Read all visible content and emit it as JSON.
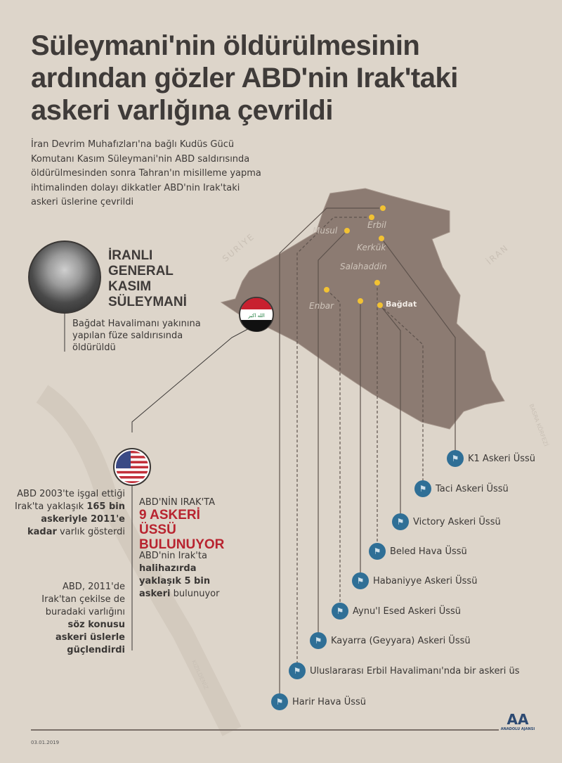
{
  "title_lines": [
    "Süleymani'nin öldürülmesinin",
    "ardından gözler ABD'nin Irak'taki",
    "askeri varlığına çevrildi"
  ],
  "lead": "İran Devrim Muhafızları'na bağlı Kudüs Gücü Komutanı Kasım Süleymani'nin ABD saldırısında öldürülmesinden sonra Tahran'ın misilleme yapma ihtimalinden dolayı dikkatler ABD'nin Irak'taki askeri üslerine çevrildi",
  "person": {
    "name_lines": [
      "İRANLI",
      "GENERAL",
      "KASIM",
      "SÜLEYMANİ"
    ],
    "desc": "Bağdat Havalimanı yakınına yapılan füze saldırısında öldürüldü"
  },
  "map_labels": {
    "syria": "SURİYE",
    "iran": "İRAN",
    "gulf": "BASRA KÖRFEZİ",
    "red_sea": "KIZILDENİZ",
    "mosul": "Musul",
    "erbil": "Erbil",
    "kirkuk": "Kerkük",
    "salahaddin": "Salahaddin",
    "anbar": "Enbar",
    "baghdad": "Bağdat"
  },
  "iraq_flag_text": "الله اكبر",
  "left_text": {
    "p1": {
      "a": "ABD 2003'te işgal ettiği Irak'ta yaklaşık ",
      "b": "165 bin askeriyle 2011'e kadar",
      "c": " varlık gösterdi"
    },
    "p2": {
      "a": "ABD, 2011'de Irak'tan çekilse de buradaki varlığını ",
      "b": "söz konusu askeri üslerle güçlendirdi"
    }
  },
  "right_text": {
    "kicker": "ABD'NİN IRAK'TA",
    "headline": "9 ASKERİ ÜSSÜ BULUNUYOR",
    "p_a": "ABD'nin Irak'ta ",
    "p_b": "halihazırda yaklaşık 5 bin askeri",
    "p_c": " bulunuyor"
  },
  "bases": [
    {
      "name": "K1 Askeri Üssü",
      "line": "solid"
    },
    {
      "name": "Taci Askeri Üssü",
      "line": "dashed"
    },
    {
      "name": "Victory Askeri Üssü",
      "line": "solid"
    },
    {
      "name": "Beled Hava Üssü",
      "line": "dashed"
    },
    {
      "name": "Habaniyye Askeri Üssü",
      "line": "solid"
    },
    {
      "name": "Aynu'l Esed Askeri Üssü",
      "line": "dashed"
    },
    {
      "name": "Kayarra (Geyyara) Askeri Üssü",
      "line": "solid"
    },
    {
      "name": "Uluslararası Erbil Havalimanı'nda bir askeri üs",
      "line": "dashed"
    },
    {
      "name": "Harir Hava Üssü",
      "line": "solid"
    }
  ],
  "colors": {
    "background": "#ddd5ca",
    "iraq": "#8c7b72",
    "base_icon": "#2f6f96",
    "marker": "#f2c233",
    "headline": "#b8232f"
  },
  "footer": {
    "date": "03.01.2019",
    "logo": "ANADOLU AJANSI"
  }
}
